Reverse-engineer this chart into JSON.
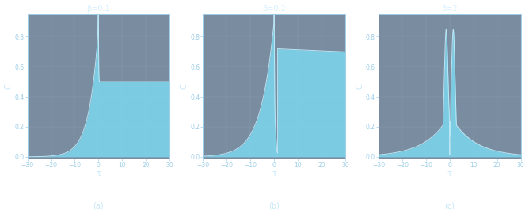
{
  "figure_alpha": 0.0,
  "axes_facecolor": [
    0.05,
    0.18,
    0.32,
    0.55
  ],
  "plot_fill_color": "#7dd8f0",
  "plot_fill_alpha": 0.85,
  "plot_line_color": "#c0eaf8",
  "axes_edge_color": "#9ecfe8",
  "tick_color": "#9ecfe8",
  "label_color": "#c8e8f8",
  "title_color": "#d8f0ff",
  "panels": [
    {
      "beta": 0.1,
      "label": "(a)"
    },
    {
      "beta": 0.2,
      "label": "(b)"
    },
    {
      "beta": 2.0,
      "label": "(c)"
    }
  ],
  "tau_range": [
    -30,
    30
  ],
  "C_ylim": [
    -0.01,
    0.95
  ],
  "yticks": [
    0.0,
    0.2,
    0.4,
    0.6,
    0.8
  ],
  "xticks": [
    -30,
    -20,
    -10,
    0,
    10,
    20,
    30
  ],
  "xlabel": "τ",
  "ylabel": "C",
  "tick_fontsize": 5.5,
  "label_fontsize": 7,
  "title_fontsize": 7,
  "panel_label_fontsize": 7
}
